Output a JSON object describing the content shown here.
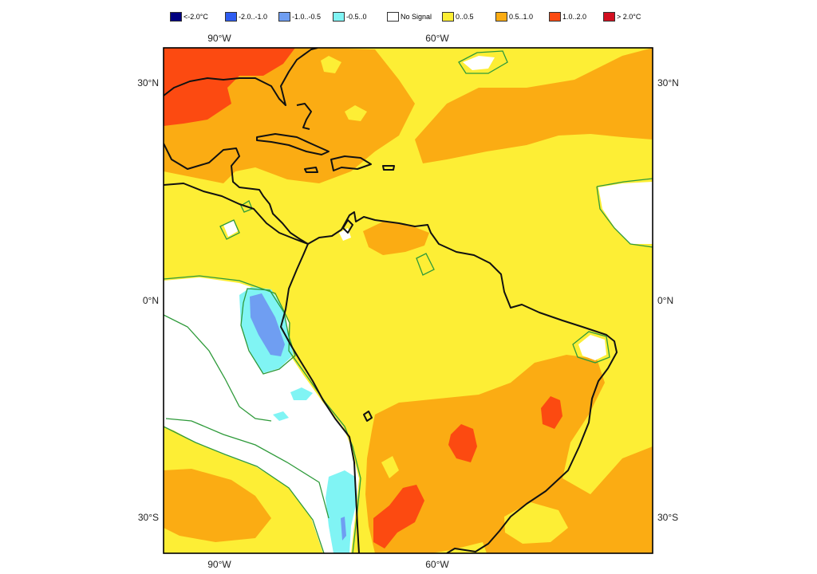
{
  "legend": [
    {
      "label": "<-2.0°C",
      "color": "#000080"
    },
    {
      "label": "-2.0..-1.0",
      "color": "#2e5cf0"
    },
    {
      "label": "-1.0..-0.5",
      "color": "#6f9ef2"
    },
    {
      "label": "-0.5..0",
      "color": "#80f4f4"
    },
    {
      "label": "No Signal",
      "color": "#ffffff"
    },
    {
      "label": "0..0.5",
      "color": "#fdee35"
    },
    {
      "label": "0.5..1.0",
      "color": "#fbac13"
    },
    {
      "label": "1.0..2.0",
      "color": "#fc4a11"
    },
    {
      "label": "> 2.0°C",
      "color": "#d20f20"
    }
  ],
  "axes": {
    "lon_top": [
      "90°W",
      "60°W"
    ],
    "lon_bottom": [
      "90°W",
      "60°W"
    ],
    "lat_left": [
      "30°N",
      "0°N",
      "30°S"
    ],
    "lat_right": [
      "30°N",
      "0°N",
      "30°S"
    ]
  },
  "colors": {
    "coast": "#111111",
    "contour": "#2e9a3a",
    "frame": "#000000"
  }
}
